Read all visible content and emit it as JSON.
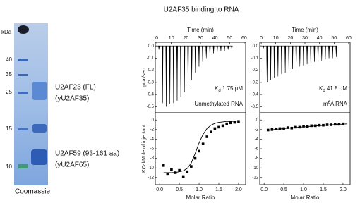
{
  "title": "U2AF35 binding to RNA",
  "gel": {
    "unit": "kDa",
    "markers": [
      "40",
      "35",
      "25",
      "15",
      "10"
    ],
    "bands": [
      [
        "U2AF23 (FL)",
        "(yU2AF35)"
      ],
      [
        "U2AF59 (93-161 aa)",
        "(yU2AF65)"
      ]
    ],
    "caption": "Coomassie"
  },
  "chart_data": [
    {
      "type": "spike",
      "xlabel": "Time (min)",
      "ylabel": "µcal/sec",
      "xlim": [
        -1,
        61
      ],
      "ylim": [
        -0.55,
        0.03
      ],
      "xticks": [
        0,
        10,
        20,
        30,
        40,
        50,
        60
      ],
      "yticks": [
        {
          "value": 0,
          "label": "0.0"
        },
        -0.1,
        -0.2,
        -0.3,
        -0.4,
        -0.5
      ],
      "x": [
        1.5,
        4,
        6.5,
        9,
        11.5,
        14,
        16.5,
        19,
        21.5,
        24,
        26.5,
        29,
        31.5,
        34,
        36.5,
        39,
        41.5,
        44,
        46.5,
        49,
        51.5
      ],
      "values": [
        -0.03,
        -0.47,
        -0.5,
        -0.48,
        -0.47,
        -0.45,
        -0.42,
        -0.38,
        -0.33,
        -0.28,
        -0.22,
        -0.17,
        -0.13,
        -0.1,
        -0.08,
        -0.06,
        -0.05,
        -0.04,
        -0.04,
        -0.03,
        -0.03
      ],
      "color": "#000",
      "kd": {
        "k": "K",
        "sub": "d",
        "text": " 1.75 µM"
      },
      "label": {
        "text": "Unmethylated RNA"
      }
    },
    {
      "type": "scatter",
      "xlabel": "Molar Ratio",
      "ylabel": "KCal/Mole of injectant",
      "xlim": [
        -0.11,
        2.18
      ],
      "ylim": [
        -13.5,
        1.5
      ],
      "xticks": [
        {
          "value": 0,
          "label": "0.0"
        },
        0.5,
        {
          "value": 1,
          "label": "1.0"
        },
        1.5,
        {
          "value": 2,
          "label": "2.0"
        }
      ],
      "yticks": [
        0,
        -2,
        -4,
        -6,
        -8,
        -10,
        -12
      ],
      "series": [
        {
          "style": "points",
          "color": "#000",
          "x": [
            0.1,
            0.2,
            0.3,
            0.4,
            0.5,
            0.6,
            0.7,
            0.8,
            0.9,
            1.0,
            1.1,
            1.2,
            1.3,
            1.4,
            1.5,
            1.6,
            1.7,
            1.8,
            1.9,
            2.0
          ],
          "values": [
            -9.5,
            -11.2,
            -10.3,
            -11,
            -10.5,
            -11.8,
            -10.8,
            -9.7,
            -8,
            -6.5,
            -5,
            -3.5,
            -2.5,
            -1.8,
            -1.5,
            -1.2,
            -0.8,
            -0.6,
            -0.5,
            -0.3
          ]
        },
        {
          "style": "line",
          "color": "#000",
          "x": [
            0.1,
            0.2,
            0.3,
            0.4,
            0.5,
            0.6,
            0.7,
            0.8,
            0.9,
            1.0,
            1.1,
            1.2,
            1.3,
            1.4,
            1.5,
            1.6,
            1.7,
            1.8,
            1.9,
            2.0,
            2.1
          ],
          "values": [
            -11,
            -11,
            -11,
            -10.95,
            -10.8,
            -10.6,
            -10.1,
            -9,
            -7,
            -4.8,
            -3,
            -1.8,
            -1.1,
            -0.7,
            -0.5,
            -0.4,
            -0.3,
            -0.3,
            -0.25,
            -0.2,
            -0.2
          ]
        }
      ]
    },
    {
      "type": "spike",
      "xlabel": "Time (min)",
      "xlim": [
        -1,
        61
      ],
      "ylim": [
        -0.55,
        0.03
      ],
      "xticks": [
        0,
        10,
        20,
        30,
        40,
        50,
        60
      ],
      "yticks": [
        {
          "value": 0,
          "label": "0.0"
        },
        -0.1,
        -0.2,
        -0.3,
        -0.4,
        -0.5
      ],
      "x": [
        1.5,
        4,
        6.5,
        9,
        11.5,
        14,
        16.5,
        19,
        21.5,
        24,
        26.5,
        29,
        31.5,
        34,
        36.5,
        39,
        41.5,
        44,
        46.5,
        49,
        51.5
      ],
      "values": [
        -0.02,
        -0.3,
        -0.28,
        -0.26,
        -0.25,
        -0.23,
        -0.22,
        -0.2,
        -0.19,
        -0.18,
        -0.17,
        -0.16,
        -0.15,
        -0.14,
        -0.13,
        -0.12,
        -0.12,
        -0.11,
        -0.1,
        -0.1,
        -0.09
      ],
      "color": "#000",
      "kd": {
        "k": "K",
        "sub": "d",
        "text": " 41.8 µM"
      },
      "label": {
        "text": "m",
        "sup": "6",
        "rest": "A RNA"
      }
    },
    {
      "type": "scatter",
      "xlabel": "Molar Ratio",
      "xlim": [
        -0.11,
        2.18
      ],
      "ylim": [
        -13.5,
        1.5
      ],
      "xticks": [
        {
          "value": 0,
          "label": "0.0"
        },
        0.5,
        {
          "value": 1,
          "label": "1.0"
        },
        1.5,
        {
          "value": 2,
          "label": "2.0"
        }
      ],
      "yticks": [
        0,
        -2,
        -4,
        -6,
        -8,
        -10,
        -12
      ],
      "series": [
        {
          "style": "points",
          "color": "#000",
          "x": [
            0.1,
            0.2,
            0.3,
            0.4,
            0.5,
            0.6,
            0.7,
            0.8,
            0.9,
            1.0,
            1.1,
            1.2,
            1.3,
            1.4,
            1.5,
            1.6,
            1.7,
            1.8,
            1.9,
            2.0
          ],
          "values": [
            -2.1,
            -2,
            -1.9,
            -1.8,
            -1.8,
            -1.6,
            -1.7,
            -1.5,
            -1.5,
            -1.3,
            -1.4,
            -1.2,
            -1.2,
            -1.1,
            -1.1,
            -1.0,
            -1.0,
            -0.9,
            -0.9,
            -0.8
          ]
        },
        {
          "style": "line",
          "color": "#000",
          "x": [
            0.1,
            0.3,
            0.5,
            0.7,
            0.9,
            1.1,
            1.3,
            1.5,
            1.7,
            1.9,
            2.1
          ],
          "values": [
            -2.15,
            -1.95,
            -1.8,
            -1.65,
            -1.5,
            -1.38,
            -1.25,
            -1.13,
            -1.02,
            -0.92,
            -0.82
          ]
        }
      ]
    }
  ]
}
